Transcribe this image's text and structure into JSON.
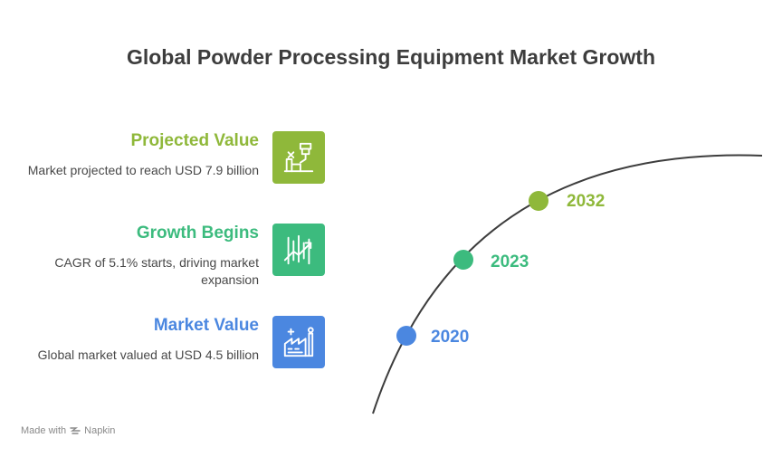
{
  "title": "Global Powder Processing Equipment Market Growth",
  "colors": {
    "projected": "#8fb83a",
    "growth": "#3cbb7e",
    "market": "#4b87e0",
    "curve": "#3d3d3d"
  },
  "entries": [
    {
      "heading": "Projected Value",
      "desc": "Market projected to reach USD 7.9 billion",
      "icon": "factory-machine-icon"
    },
    {
      "heading": "Growth Begins",
      "desc": "CAGR of 5.1% starts, driving market expansion",
      "icon": "growth-chart-icon"
    },
    {
      "heading": "Market Value",
      "desc": "Global market valued at USD 4.5 billion",
      "icon": "factory-icon"
    }
  ],
  "timeline": {
    "years": [
      "2032",
      "2023",
      "2020"
    ]
  },
  "footer": {
    "made_with": "Made with",
    "brand": "Napkin"
  }
}
